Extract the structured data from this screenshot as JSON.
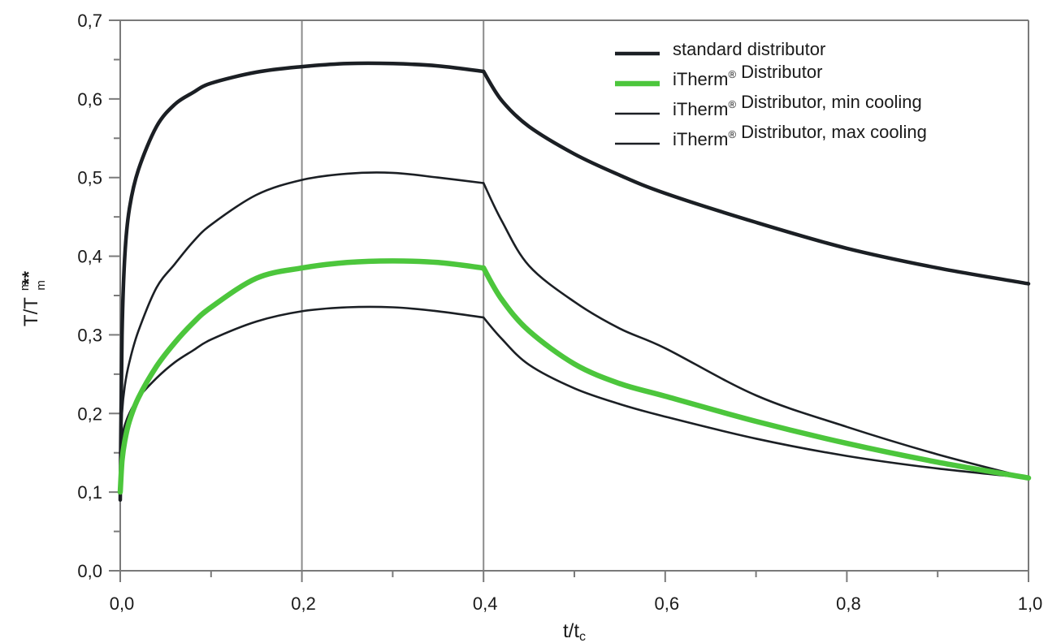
{
  "chart_data": {
    "type": "line",
    "xlabel": "t/t",
    "xlabel_sub": "c",
    "ylabel": "T/T",
    "ylabel_sup": "m",
    "ylabel_sub": "m",
    "ylabel_mark": "**",
    "xlim": [
      0,
      1
    ],
    "ylim": [
      0,
      0.7
    ],
    "x_ticks": [
      0.0,
      0.2,
      0.4,
      0.6,
      0.8,
      1.0
    ],
    "x_tick_labels": [
      "0,0",
      "0,2",
      "0,4",
      "0,6",
      "0,8",
      "1,0"
    ],
    "y_ticks": [
      0.0,
      0.1,
      0.2,
      0.3,
      0.4,
      0.5,
      0.6,
      0.7
    ],
    "y_tick_labels": [
      "0,0",
      "0,1",
      "0,2",
      "0,3",
      "0,4",
      "0,5",
      "0,6",
      "0,7"
    ],
    "vertical_gridlines": [
      0.2,
      0.4
    ],
    "legend_position": "top-right",
    "series": [
      {
        "name": "standard distributor",
        "color": "#1b1f24",
        "emphasis": "thick",
        "points": [
          [
            0.0,
            0.09
          ],
          [
            0.002,
            0.3
          ],
          [
            0.005,
            0.4
          ],
          [
            0.01,
            0.46
          ],
          [
            0.02,
            0.51
          ],
          [
            0.04,
            0.565
          ],
          [
            0.06,
            0.593
          ],
          [
            0.08,
            0.608
          ],
          [
            0.1,
            0.62
          ],
          [
            0.15,
            0.634
          ],
          [
            0.2,
            0.641
          ],
          [
            0.25,
            0.645
          ],
          [
            0.3,
            0.645
          ],
          [
            0.35,
            0.642
          ],
          [
            0.4,
            0.635
          ],
          [
            0.42,
            0.598
          ],
          [
            0.45,
            0.565
          ],
          [
            0.5,
            0.53
          ],
          [
            0.55,
            0.503
          ],
          [
            0.6,
            0.48
          ],
          [
            0.7,
            0.443
          ],
          [
            0.8,
            0.41
          ],
          [
            0.9,
            0.385
          ],
          [
            1.0,
            0.365
          ]
        ]
      },
      {
        "name": "iTherm® Distributor",
        "color": "#4cc63c",
        "emphasis": "bold",
        "points": [
          [
            0.0,
            0.1
          ],
          [
            0.002,
            0.14
          ],
          [
            0.005,
            0.165
          ],
          [
            0.01,
            0.19
          ],
          [
            0.02,
            0.22
          ],
          [
            0.04,
            0.26
          ],
          [
            0.06,
            0.29
          ],
          [
            0.08,
            0.315
          ],
          [
            0.1,
            0.335
          ],
          [
            0.15,
            0.372
          ],
          [
            0.2,
            0.385
          ],
          [
            0.25,
            0.392
          ],
          [
            0.3,
            0.394
          ],
          [
            0.35,
            0.392
          ],
          [
            0.4,
            0.385
          ],
          [
            0.42,
            0.345
          ],
          [
            0.45,
            0.305
          ],
          [
            0.5,
            0.263
          ],
          [
            0.55,
            0.238
          ],
          [
            0.6,
            0.222
          ],
          [
            0.7,
            0.19
          ],
          [
            0.8,
            0.162
          ],
          [
            0.9,
            0.138
          ],
          [
            1.0,
            0.118
          ]
        ]
      },
      {
        "name": "iTherm® Distributor, min cooling",
        "color": "#1b1f24",
        "emphasis": "thin",
        "points": [
          [
            0.0,
            0.13
          ],
          [
            0.002,
            0.2
          ],
          [
            0.005,
            0.235
          ],
          [
            0.01,
            0.265
          ],
          [
            0.02,
            0.305
          ],
          [
            0.04,
            0.36
          ],
          [
            0.06,
            0.39
          ],
          [
            0.08,
            0.418
          ],
          [
            0.1,
            0.44
          ],
          [
            0.15,
            0.478
          ],
          [
            0.2,
            0.497
          ],
          [
            0.25,
            0.505
          ],
          [
            0.3,
            0.506
          ],
          [
            0.35,
            0.5
          ],
          [
            0.4,
            0.493
          ],
          [
            0.42,
            0.445
          ],
          [
            0.45,
            0.388
          ],
          [
            0.5,
            0.342
          ],
          [
            0.55,
            0.308
          ],
          [
            0.6,
            0.283
          ],
          [
            0.7,
            0.223
          ],
          [
            0.8,
            0.183
          ],
          [
            0.9,
            0.148
          ],
          [
            1.0,
            0.118
          ]
        ]
      },
      {
        "name": "iTherm® Distributor, max cooling",
        "color": "#1b1f24",
        "emphasis": "thin",
        "points": [
          [
            0.0,
            0.15
          ],
          [
            0.002,
            0.17
          ],
          [
            0.005,
            0.185
          ],
          [
            0.01,
            0.2
          ],
          [
            0.02,
            0.22
          ],
          [
            0.04,
            0.245
          ],
          [
            0.06,
            0.265
          ],
          [
            0.08,
            0.28
          ],
          [
            0.1,
            0.294
          ],
          [
            0.15,
            0.317
          ],
          [
            0.2,
            0.33
          ],
          [
            0.25,
            0.335
          ],
          [
            0.3,
            0.335
          ],
          [
            0.35,
            0.33
          ],
          [
            0.4,
            0.322
          ],
          [
            0.42,
            0.295
          ],
          [
            0.45,
            0.262
          ],
          [
            0.5,
            0.232
          ],
          [
            0.55,
            0.212
          ],
          [
            0.6,
            0.196
          ],
          [
            0.7,
            0.168
          ],
          [
            0.8,
            0.146
          ],
          [
            0.9,
            0.13
          ],
          [
            1.0,
            0.118
          ]
        ]
      }
    ]
  }
}
